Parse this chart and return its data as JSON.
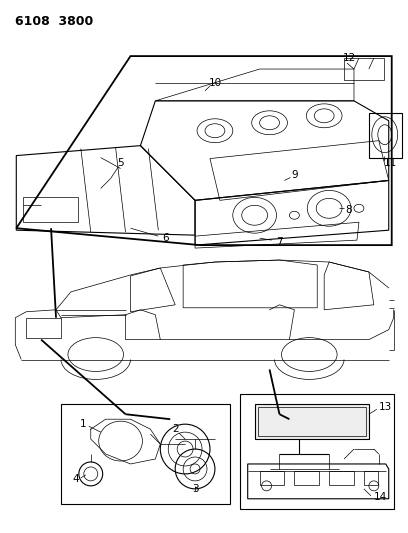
{
  "title": "6108  3800",
  "bg_color": "#ffffff",
  "line_color": "#000000",
  "fig_width": 4.08,
  "fig_height": 5.33,
  "dpi": 100
}
